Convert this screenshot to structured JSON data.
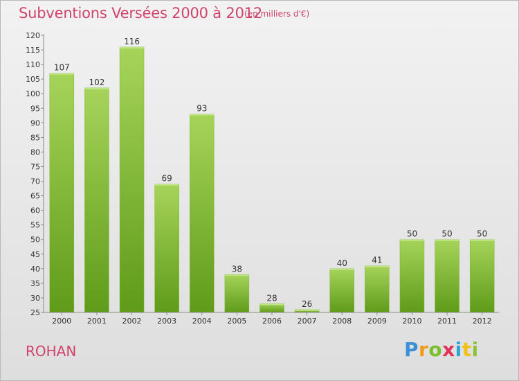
{
  "title": "Subventions Versées 2000 à 2012",
  "subtitle": "(en milliers d'€)",
  "commune": "ROHAN",
  "logo": {
    "letters": [
      "P",
      "r",
      "o",
      "x",
      "i",
      "t",
      "i"
    ]
  },
  "colors": {
    "bar_light": "#a6d45a",
    "bar_dark": "#5f9b19",
    "title": "#d0436b",
    "axis": "#888888",
    "text": "#333333"
  },
  "chart_data": {
    "type": "bar",
    "title": "Subventions Versées 2000 à 2012",
    "categories": [
      "2000",
      "2001",
      "2002",
      "2003",
      "2004",
      "2005",
      "2006",
      "2007",
      "2008",
      "2009",
      "2010",
      "2011",
      "2012"
    ],
    "values": [
      107,
      102,
      116,
      69,
      93,
      38,
      28,
      26,
      40,
      41,
      50,
      50,
      50
    ],
    "ylim": [
      25,
      120
    ],
    "yticks": [
      25,
      30,
      35,
      40,
      45,
      50,
      55,
      60,
      65,
      70,
      75,
      80,
      85,
      90,
      95,
      100,
      105,
      110,
      115,
      120
    ],
    "grid": false,
    "legend": "none"
  }
}
